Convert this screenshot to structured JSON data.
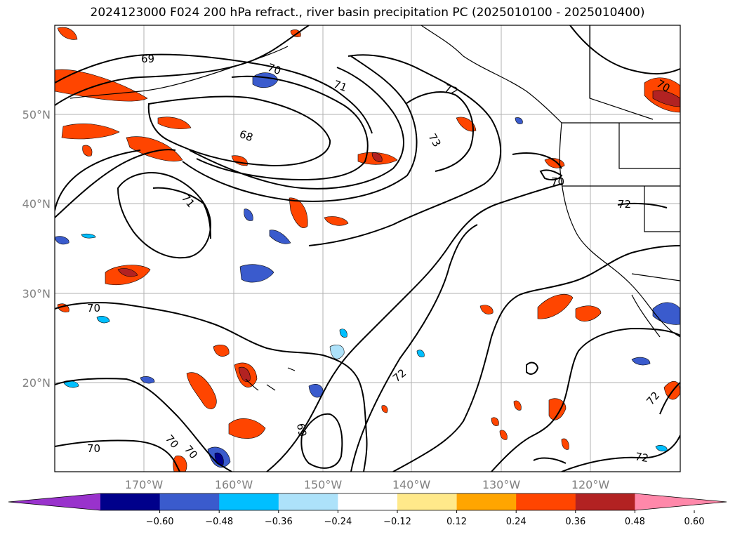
{
  "title": "2024123000 F024 200 hPa refract., river basin precipitation PC (2025010100 - 2025010400)",
  "map": {
    "lat_labels": [
      "50°N",
      "40°N",
      "30°N",
      "20°N"
    ],
    "lon_labels": [
      "170°W",
      "160°W",
      "150°W",
      "140°W",
      "130°W",
      "120°W"
    ],
    "contour_labels": [
      "69",
      "70",
      "71",
      "72",
      "68",
      "73",
      "71",
      "70",
      "72",
      "70",
      "70",
      "72",
      "72",
      "70",
      "69",
      "70",
      "72",
      "70"
    ]
  },
  "colorbar": {
    "colors": [
      "#9932CC",
      "#00008B",
      "#3A5BCD",
      "#00BFFF",
      "#ADE2FA",
      "#FFFFFF",
      "#FFE98A",
      "#FFA500",
      "#FF4500",
      "#B22222",
      "#FF88AA"
    ],
    "tick_labels": [
      "−0.60",
      "−0.48",
      "−0.36",
      "−0.24",
      "−0.12",
      "0.12",
      "0.24",
      "0.36",
      "0.48",
      "0.60"
    ]
  }
}
